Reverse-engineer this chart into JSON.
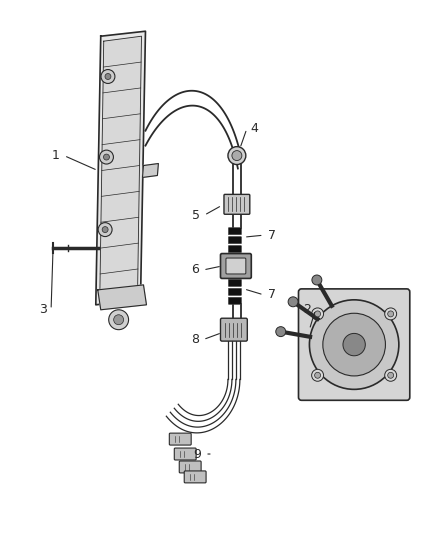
{
  "background_color": "#ffffff",
  "fig_width": 4.38,
  "fig_height": 5.33,
  "dpi": 100,
  "line_color": "#2a2a2a",
  "label_color": "#2a2a2a",
  "label_fontsize": 9
}
